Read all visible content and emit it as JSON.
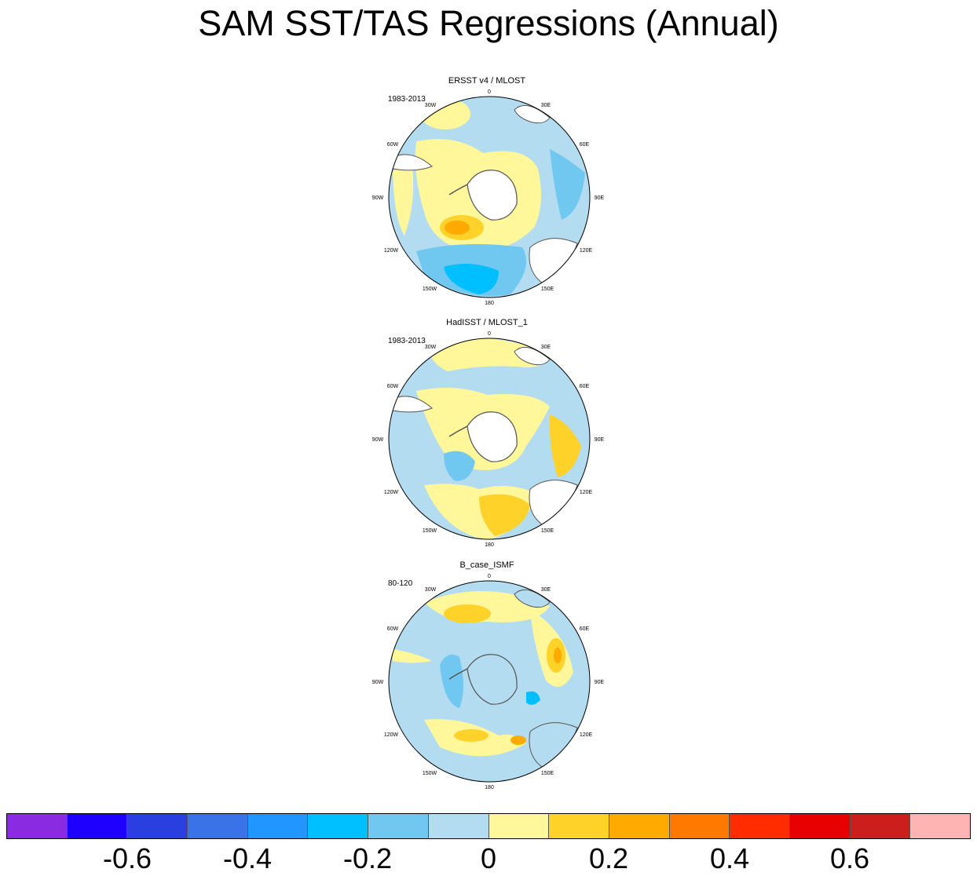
{
  "title": "SAM SST/TAS Regressions (Annual)",
  "panels": [
    {
      "name": "ERSST v4 / MLOST",
      "period": "1983-2013"
    },
    {
      "name": "HadISST / MLOST_1",
      "period": "1983-2013"
    },
    {
      "name": "B_case_ISMF",
      "period": "80-120"
    }
  ],
  "lon_labels": [
    "0",
    "30E",
    "60E",
    "90E",
    "120E",
    "150E",
    "180",
    "150W",
    "120W",
    "90W",
    "60W",
    "30W"
  ],
  "colorbar": {
    "colors": [
      "#8a2be2",
      "#1e00ff",
      "#2a3fe0",
      "#3a73e8",
      "#2196ff",
      "#00bfff",
      "#70c8f0",
      "#b4dcf0",
      "#fff799",
      "#ffd22a",
      "#ffaa00",
      "#ff7800",
      "#ff2c00",
      "#e60000",
      "#cd1e1e",
      "#ffb4b4"
    ],
    "labels": [
      "-0.6",
      "-0.4",
      "-0.2",
      "0",
      "0.2",
      "0.4",
      "0.6"
    ]
  }
}
